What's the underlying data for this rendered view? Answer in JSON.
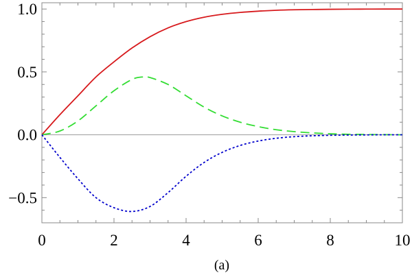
{
  "chart_data": {
    "type": "line",
    "caption": "(a)",
    "xlim": [
      0,
      10
    ],
    "ylim": [
      -0.7,
      1.05
    ],
    "x_ticks": [
      0,
      2,
      4,
      6,
      8,
      10
    ],
    "x_tick_labels": [
      "0",
      "2",
      "4",
      "6",
      "8",
      "10"
    ],
    "y_ticks": [
      -0.5,
      0,
      0.5,
      1
    ],
    "y_tick_labels": [
      "−0.5",
      "0.0",
      "0.5",
      "1.0"
    ],
    "zero_line": true,
    "grid": false,
    "series": [
      {
        "color": "#d7191c",
        "style": "solid",
        "x": [
          0,
          0.5,
          1,
          1.5,
          2,
          2.5,
          3,
          3.5,
          4,
          4.5,
          5,
          5.5,
          6,
          6.5,
          7,
          7.5,
          8,
          8.5,
          9,
          9.5,
          10
        ],
        "values": [
          0,
          0.16,
          0.31,
          0.46,
          0.58,
          0.69,
          0.78,
          0.85,
          0.9,
          0.935,
          0.958,
          0.973,
          0.983,
          0.99,
          0.994,
          0.996,
          0.998,
          0.999,
          0.9995,
          1.0,
          1.0
        ]
      },
      {
        "color": "#33dd33",
        "style": "dashed",
        "x": [
          0,
          0.5,
          1,
          1.5,
          2,
          2.5,
          2.8,
          3,
          3.5,
          4,
          4.5,
          5,
          5.5,
          6,
          6.5,
          7,
          7.5,
          8,
          8.5,
          9,
          9.5,
          10
        ],
        "values": [
          0,
          0.03,
          0.11,
          0.23,
          0.35,
          0.44,
          0.46,
          0.455,
          0.4,
          0.31,
          0.22,
          0.15,
          0.1,
          0.065,
          0.04,
          0.025,
          0.015,
          0.008,
          0.004,
          0.002,
          0.001,
          0.0
        ]
      },
      {
        "color": "#0000cc",
        "style": "dotted",
        "x": [
          0,
          0.5,
          1,
          1.5,
          2,
          2.5,
          3,
          3.5,
          4,
          4.5,
          5,
          5.5,
          6,
          6.5,
          7,
          7.5,
          8,
          8.5,
          9,
          9.5,
          10
        ],
        "values": [
          0,
          -0.18,
          -0.35,
          -0.5,
          -0.58,
          -0.61,
          -0.57,
          -0.46,
          -0.33,
          -0.22,
          -0.14,
          -0.085,
          -0.05,
          -0.028,
          -0.015,
          -0.008,
          -0.004,
          -0.002,
          -0.001,
          0.0,
          0.0
        ]
      }
    ]
  }
}
